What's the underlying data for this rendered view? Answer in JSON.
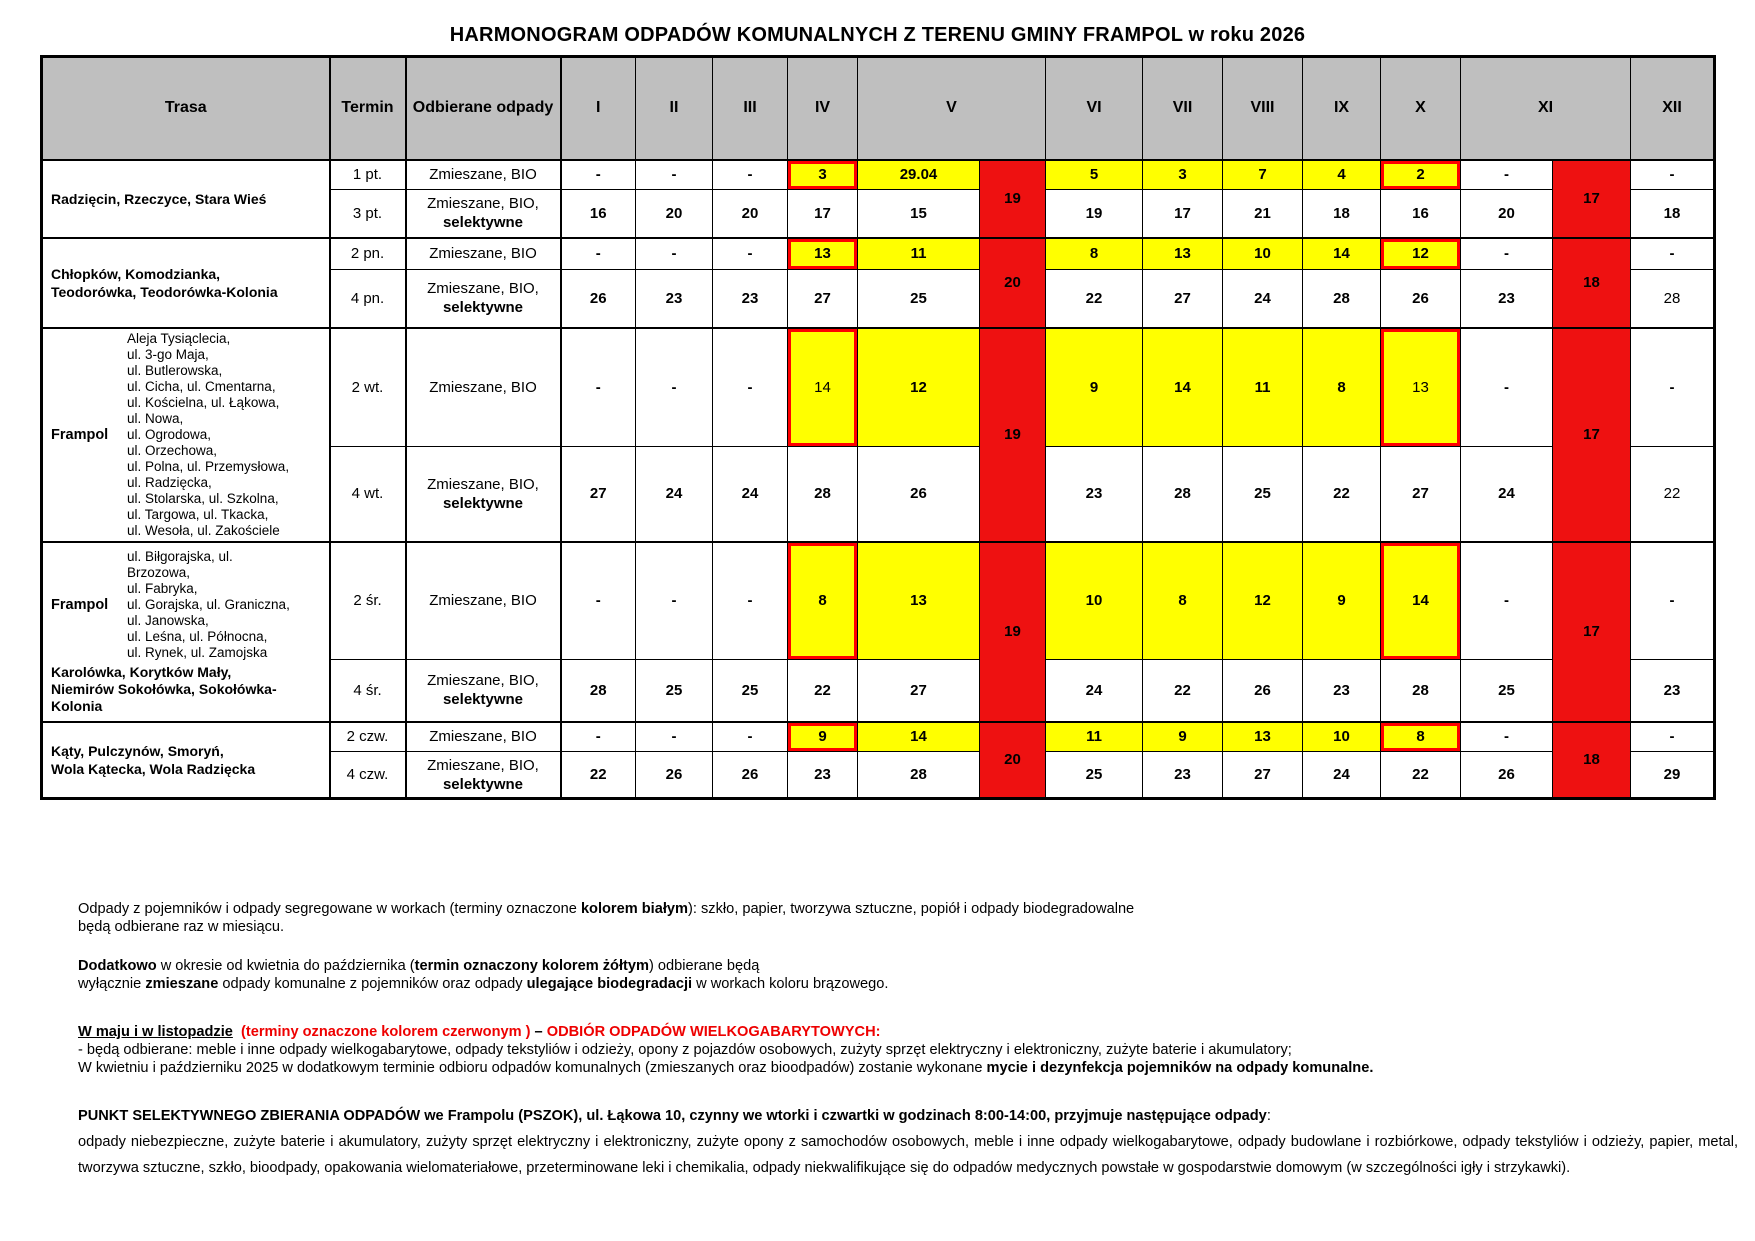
{
  "title": "HARMONOGRAM  ODPADÓW KOMUNALNYCH Z TERENU GMINY FRAMPOL w roku 2026",
  "colors": {
    "gray": "#bfbfbf",
    "yellow": "#ffff00",
    "red": "#ee1111",
    "redline": "#ff0000",
    "notered": "#ee0000"
  },
  "table": {
    "header": {
      "trasa": "Trasa",
      "termin": "Termin",
      "odpady": "Odbierane odpady",
      "months": [
        "I",
        "II",
        "III",
        "IV",
        "V",
        "VI",
        "VII",
        "VIII",
        "IX",
        "X",
        "XI",
        "XII"
      ]
    },
    "groups": [
      {
        "route": {
          "main": "Radzięcin, Rzeczyce,  Stara Wieś"
        },
        "may": "19",
        "nov": "17",
        "rows": [
          {
            "termin": "1 pt.",
            "odpady": [
              "Zmieszane, BIO"
            ],
            "cells": [
              "-",
              "-",
              "-",
              {
                "v": "3",
                "bg": "y",
                "rb": true
              },
              {
                "v": "29.04",
                "bg": "y"
              },
              {
                "v": "5",
                "bg": "y"
              },
              {
                "v": "3",
                "bg": "y"
              },
              {
                "v": "7",
                "bg": "y"
              },
              {
                "v": "4",
                "bg": "y"
              },
              {
                "v": "2",
                "bg": "y",
                "rb": true
              },
              "-",
              "-"
            ]
          },
          {
            "termin": "3 pt.",
            "odpady": [
              "Zmieszane, BIO,",
              "selektywne"
            ],
            "cells": [
              "16",
              "20",
              "20",
              "17",
              "15",
              "19",
              "17",
              "21",
              "18",
              "16",
              "20",
              "18"
            ]
          }
        ]
      },
      {
        "route": {
          "main": "Chłopków, Komodzianka,\nTeodorówka, Teodorówka-Kolonia"
        },
        "may": "20",
        "nov": "18",
        "rows": [
          {
            "termin": "2 pn.",
            "odpady": [
              "Zmieszane, BIO"
            ],
            "cells": [
              "-",
              "-",
              "-",
              {
                "v": "13",
                "bg": "y",
                "rb": true
              },
              {
                "v": "11",
                "bg": "y"
              },
              {
                "v": "8",
                "bg": "y"
              },
              {
                "v": "13",
                "bg": "y"
              },
              {
                "v": "10",
                "bg": "y"
              },
              {
                "v": "14",
                "bg": "y"
              },
              {
                "v": "12",
                "bg": "y",
                "rb": true
              },
              "-",
              "-"
            ]
          },
          {
            "termin": "4 pn.",
            "odpady": [
              "Zmieszane, BIO,",
              "selektywne"
            ],
            "cells": [
              "26",
              "23",
              "23",
              "27",
              "25",
              "22",
              "27",
              "24",
              "28",
              "26",
              "23",
              {
                "v": "28",
                "light": true
              }
            ]
          }
        ]
      },
      {
        "route": {
          "label": "Frampol",
          "streets": "Aleja Tysiąclecia,\nul. 3-go Maja,\nul. Butlerowska,\nul. Cicha, ul. Cmentarna,\nul. Kościelna, ul. Łąkowa,\nul. Nowa,\nul. Ogrodowa,\nul. Orzechowa,\nul. Polna, ul. Przemysłowa,\nul. Radzięcka,\nul. Stolarska, ul. Szkolna,\nul. Targowa, ul. Tkacka,\nul. Wesoła, ul. Zakościele"
        },
        "may": "19",
        "nov": "17",
        "rows": [
          {
            "termin": "2 wt.",
            "odpady": [
              "Zmieszane, BIO"
            ],
            "cells": [
              "-",
              "-",
              "-",
              {
                "v": "14",
                "bg": "y",
                "rb": true,
                "light": true
              },
              {
                "v": "12",
                "bg": "y"
              },
              {
                "v": "9",
                "bg": "y"
              },
              {
                "v": "14",
                "bg": "y"
              },
              {
                "v": "11",
                "bg": "y"
              },
              {
                "v": "8",
                "bg": "y"
              },
              {
                "v": "13",
                "bg": "y",
                "rb": true,
                "light": true
              },
              "-",
              "-"
            ]
          },
          {
            "termin": "4 wt.",
            "odpady": [
              "Zmieszane, BIO,",
              "selektywne"
            ],
            "cells": [
              "27",
              "24",
              "24",
              "28",
              "26",
              "23",
              "28",
              "25",
              "22",
              "27",
              "24",
              {
                "v": "22",
                "light": true
              }
            ]
          }
        ]
      },
      {
        "route": {
          "label": "Frampol",
          "streets": "ul. Biłgorajska, ul.\nBrzozowa,\nul. Fabryka,\nul. Gorajska, ul. Graniczna,\nul. Janowska,\nul. Leśna, ul. Północna,\nul. Rynek, ul. Zamojska",
          "extra": "Karolówka, Korytków Mały,\nNiemirów Sokołówka, Sokołówka-\nKolonia"
        },
        "may": "19",
        "nov": "17",
        "rows": [
          {
            "termin": "2 śr.",
            "odpady": [
              "Zmieszane, BIO"
            ],
            "cells": [
              "-",
              "-",
              "-",
              {
                "v": "8",
                "bg": "y",
                "rb": true
              },
              {
                "v": "13",
                "bg": "y"
              },
              {
                "v": "10",
                "bg": "y"
              },
              {
                "v": "8",
                "bg": "y"
              },
              {
                "v": "12",
                "bg": "y"
              },
              {
                "v": "9",
                "bg": "y"
              },
              {
                "v": "14",
                "bg": "y",
                "rb": true
              },
              "-",
              "-"
            ]
          },
          {
            "termin": "4 śr.",
            "odpady": [
              "Zmieszane, BIO,",
              "selektywne"
            ],
            "cells": [
              "28",
              "25",
              "25",
              "22",
              "27",
              "24",
              "22",
              "26",
              "23",
              "28",
              "25",
              "23"
            ]
          }
        ]
      },
      {
        "route": {
          "main": "Kąty, Pulczynów, Smoryń,\nWola Kątecka, Wola Radzięcka"
        },
        "may": "20",
        "nov": "18",
        "rows": [
          {
            "termin": "2 czw.",
            "odpady": [
              "Zmieszane, BIO"
            ],
            "cells": [
              "-",
              "-",
              "-",
              {
                "v": "9",
                "bg": "y",
                "rb": true
              },
              {
                "v": "14",
                "bg": "y"
              },
              {
                "v": "11",
                "bg": "y"
              },
              {
                "v": "9",
                "bg": "y"
              },
              {
                "v": "13",
                "bg": "y"
              },
              {
                "v": "10",
                "bg": "y"
              },
              {
                "v": "8",
                "bg": "y",
                "rb": true
              },
              "-",
              "-"
            ]
          },
          {
            "termin": "4 czw.",
            "odpady": [
              "Zmieszane, BIO,",
              "selektywne"
            ],
            "cells": [
              "22",
              "26",
              "26",
              "23",
              "28",
              "25",
              "23",
              "27",
              "24",
              "22",
              "26",
              "29"
            ]
          }
        ]
      }
    ]
  },
  "notes": [
    {
      "segments": [
        {
          "t": "Odpady z pojemników i odpady segregowane w workach (terminy oznaczone "
        },
        {
          "t": "kolorem białym",
          "b": true
        },
        {
          "t": "): szkło, papier, tworzywa sztuczne, popiół i odpady biodegradowalne\nbędą odbierane raz w miesiącu."
        }
      ]
    },
    {
      "segments": [
        {
          "t": "Dodatkowo",
          "b": true
        },
        {
          "t": " w okresie od kwietnia do października ("
        },
        {
          "t": "termin oznaczony kolorem żółtym",
          "b": true
        },
        {
          "t": ") odbierane będą\nwyłącznie "
        },
        {
          "t": "zmieszane",
          "b": true
        },
        {
          "t": " odpady komunalne z pojemników oraz odpady "
        },
        {
          "t": "ulegające biodegradacji",
          "b": true
        },
        {
          "t": " w workach koloru brązowego."
        }
      ]
    },
    {
      "segments": [
        {
          "t": "W maju i w listopadzie",
          "b": true,
          "u": true
        },
        {
          "t": "  ",
          "b": true
        },
        {
          "t": "(terminy oznaczone kolorem czerwonym )",
          "b": true,
          "red": true
        },
        {
          "t": " – ",
          "b": true
        },
        {
          "t": "ODBIÓR ODPADÓW WIELKOGABARYTOWYCH:",
          "b": true,
          "red": true
        },
        {
          "t": "\n- będą odbierane: meble i inne odpady wielkogabarytowe, odpady tekstyliów i odzieży, opony z pojazdów osobowych, zużyty sprzęt elektryczny i elektroniczny, zużyte baterie i akumulatory;\nW kwietniu i październiku 2025 w dodatkowym terminie odbioru odpadów komunalnych (zmieszanych oraz bioodpadów) zostanie wykonane "
        },
        {
          "t": "mycie i dezynfekcja pojemników na odpady komunalne.",
          "b": true
        }
      ]
    },
    {
      "segments": [
        {
          "t": "PUNKT SELEKTYWNEGO ZBIERANIA ODPADÓW we Frampolu (PSZOK), ul. Łąkowa 10, czynny we wtorki i czwartki w godzinach 8:00-14:00, przyjmuje następujące odpady",
          "b": true
        },
        {
          "t": ":\nodpady niebezpieczne, zużyte baterie i akumulatory, zużyty sprzęt elektryczny i elektroniczny, zużyte opony z samochodów osobowych, meble i inne odpady wielkogabarytowe, odpady budowlane i rozbiórkowe, odpady tekstyliów i odzieży, papier, metal, tworzywa sztuczne, szkło, bioodpady, opakowania wielomateriałowe, przeterminowane leki i chemikalia, odpady niekwalifikujące się do odpadów medycznych powstałe w gospodarstwie domowym (w szczególności igły i strzykawki)."
        }
      ]
    }
  ]
}
